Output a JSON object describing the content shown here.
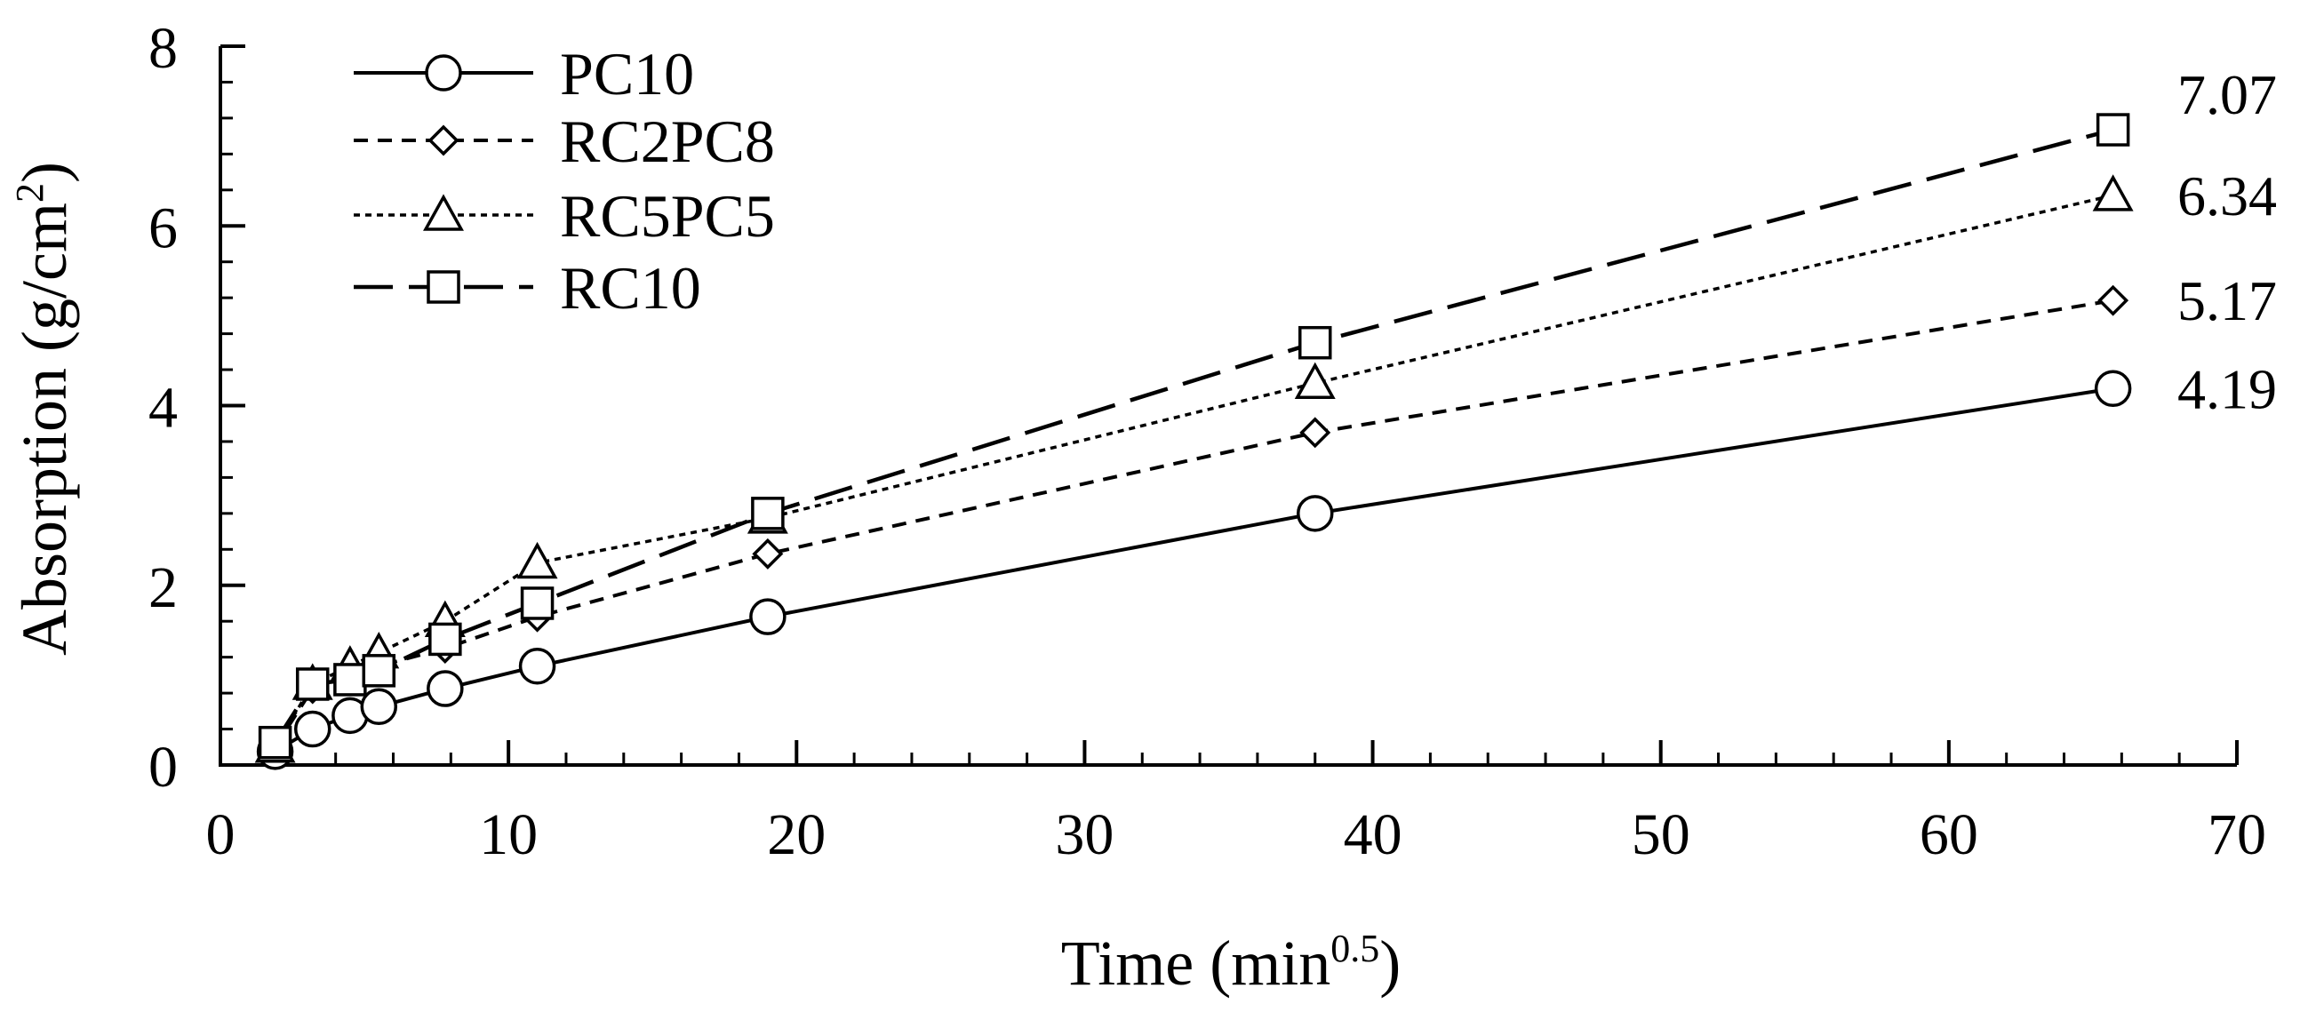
{
  "chart_data": {
    "type": "line",
    "xlabel": "Time (min",
    "xlabel_sup": "0.5",
    "xlabel_end": ")",
    "ylabel": "Absorption (g/cm",
    "ylabel_sup": "2",
    "ylabel_end": ")",
    "xlim": [
      0,
      70
    ],
    "ylim": [
      0,
      8
    ],
    "xticks": [
      0,
      10,
      20,
      30,
      40,
      50,
      60,
      70
    ],
    "yticks": [
      0,
      2,
      4,
      6,
      8
    ],
    "legend_position": "top-left",
    "x": [
      1.9,
      3.2,
      4.5,
      5.5,
      7.8,
      11,
      19,
      38,
      65.7
    ],
    "series": [
      {
        "name": "PC10",
        "marker": "circle",
        "dash": "solid",
        "values": [
          0.15,
          0.4,
          0.55,
          0.65,
          0.85,
          1.1,
          1.65,
          2.8,
          4.19
        ],
        "end_label": "4.19"
      },
      {
        "name": "RC2PC8",
        "marker": "diamond",
        "dash": "dashed",
        "values": [
          0.2,
          0.85,
          1.0,
          1.1,
          1.3,
          1.65,
          2.35,
          3.7,
          5.17
        ],
        "end_label": "5.17"
      },
      {
        "name": "RC5PC5",
        "marker": "triangle",
        "dash": "dotted",
        "values": [
          0.2,
          0.9,
          1.1,
          1.25,
          1.6,
          2.25,
          2.75,
          4.25,
          6.34
        ],
        "end_label": "6.34"
      },
      {
        "name": "RC10",
        "marker": "square",
        "dash": "longdash",
        "values": [
          0.25,
          0.9,
          0.95,
          1.05,
          1.4,
          1.8,
          2.8,
          4.7,
          7.07
        ],
        "end_label": "7.07"
      }
    ]
  }
}
